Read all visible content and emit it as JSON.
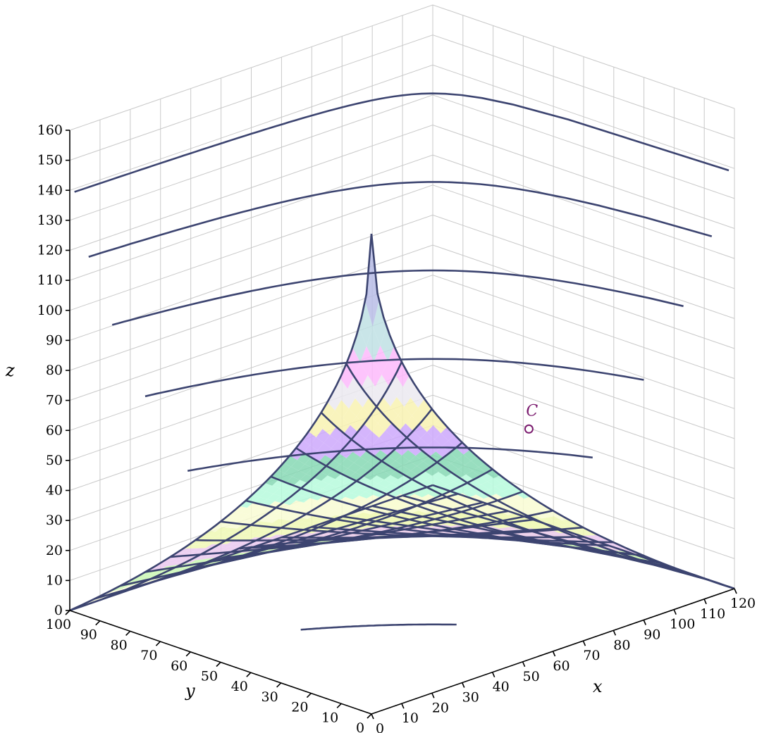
{
  "chart_data": {
    "type": "surface3d",
    "title": "",
    "xlabel": "x",
    "ylabel": "y",
    "zlabel": "z",
    "xlim": [
      0,
      120
    ],
    "ylim": [
      0,
      100
    ],
    "zlim": [
      0,
      160
    ],
    "x_ticks": [
      "0",
      "10",
      "20",
      "30",
      "40",
      "50",
      "60",
      "70",
      "80",
      "90",
      "100",
      "110",
      "120"
    ],
    "y_ticks": [
      "0",
      "10",
      "20",
      "30",
      "40",
      "50",
      "60",
      "70",
      "80",
      "90",
      "100"
    ],
    "z_ticks": [
      "0",
      "10",
      "20",
      "30",
      "40",
      "50",
      "60",
      "70",
      "80",
      "90",
      "100",
      "110",
      "120",
      "130",
      "140",
      "150",
      "160"
    ],
    "grid": true,
    "surface": "z = 160 - 160*sqrt(1 - (x/120 - 1)*(y/100 - 1))",
    "annotations": [
      {
        "label": "C",
        "x": 72,
        "y": 20,
        "z": 63,
        "color": "#7a1a6e"
      }
    ],
    "band_colors": [
      "#fcfcd8",
      "#c8f7b2",
      "#eac8ee",
      "#eef8b4",
      "#f8fbd2",
      "#b6fadc",
      "#86d8b4",
      "#cda8fb",
      "#f8f2b2",
      "#ebe9f0",
      "#fdbafb",
      "#bfe1e4",
      "#b9bde6",
      "#dfd0fa",
      "#ead4f0"
    ]
  }
}
